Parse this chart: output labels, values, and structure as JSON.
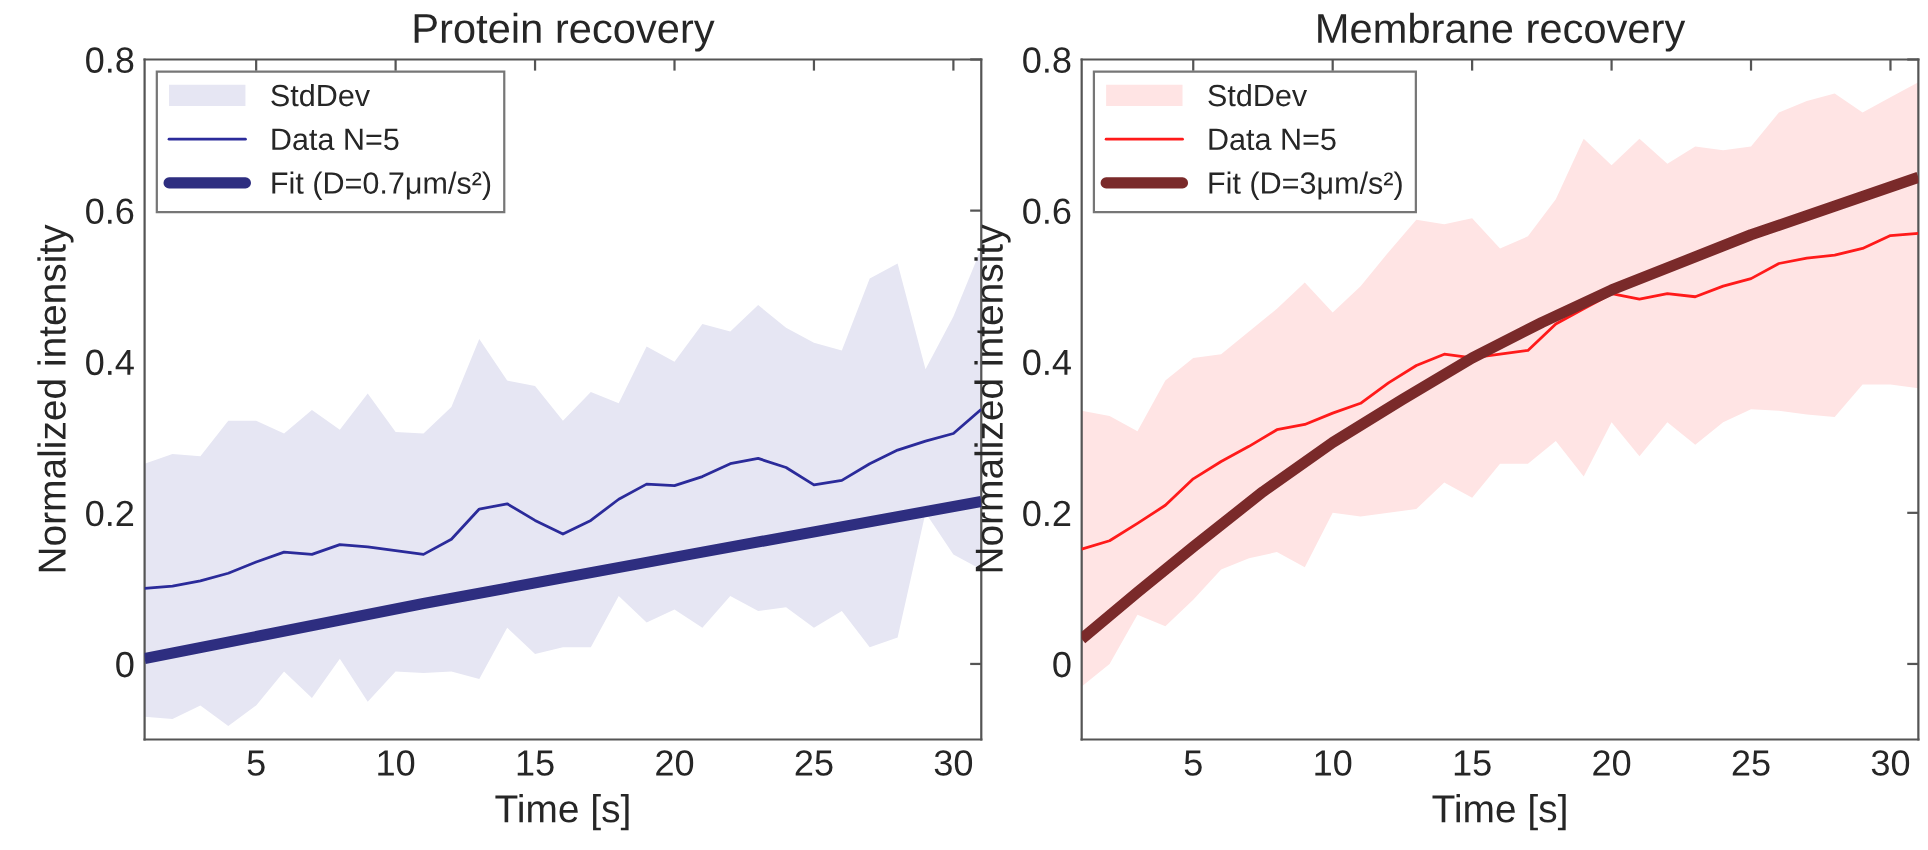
{
  "chart_data": [
    {
      "type": "line",
      "title": "Protein recovery",
      "xlabel": "Time [s]",
      "ylabel": "Normalized intensity",
      "xlim": [
        1,
        31
      ],
      "ylim": [
        -0.1,
        0.8
      ],
      "xticks": [
        5,
        10,
        15,
        20,
        25,
        30
      ],
      "yticks": [
        0,
        0.2,
        0.4,
        0.6,
        0.8
      ],
      "grid": false,
      "legend": "top left",
      "annotations": [
        "StdDev"
      ],
      "x": [
        1,
        2,
        3,
        4,
        5,
        6,
        7,
        8,
        9,
        10,
        11,
        12,
        13,
        14,
        15,
        16,
        17,
        18,
        19,
        20,
        21,
        22,
        23,
        24,
        25,
        26,
        27,
        28,
        29,
        30,
        31
      ],
      "series": [
        {
          "name": "Data N=5",
          "type": "line",
          "color": "#2b2b9a",
          "values": [
            0.1,
            0.103,
            0.11,
            0.12,
            0.135,
            0.148,
            0.145,
            0.158,
            0.155,
            0.15,
            0.145,
            0.165,
            0.205,
            0.212,
            0.19,
            0.172,
            0.19,
            0.218,
            0.238,
            0.236,
            0.248,
            0.265,
            0.272,
            0.26,
            0.237,
            0.243,
            0.265,
            0.283,
            0.295,
            0.305,
            0.337
          ],
          "lower": [
            -0.07,
            -0.073,
            -0.055,
            -0.082,
            -0.055,
            -0.01,
            -0.045,
            0.007,
            -0.05,
            -0.01,
            -0.012,
            -0.01,
            -0.02,
            0.048,
            0.013,
            0.022,
            0.022,
            0.09,
            0.055,
            0.072,
            0.048,
            0.09,
            0.07,
            0.075,
            0.048,
            0.07,
            0.022,
            0.035,
            0.2,
            0.145,
            0.125
          ],
          "upper": [
            0.265,
            0.278,
            0.275,
            0.322,
            0.322,
            0.305,
            0.336,
            0.31,
            0.358,
            0.307,
            0.305,
            0.34,
            0.43,
            0.375,
            0.368,
            0.322,
            0.36,
            0.345,
            0.42,
            0.4,
            0.45,
            0.44,
            0.475,
            0.445,
            0.425,
            0.415,
            0.51,
            0.53,
            0.39,
            0.46,
            0.55
          ]
        },
        {
          "name": "Fit (D=0.7μm/s²)",
          "type": "line",
          "color": "#2e2e80",
          "x": [
            1,
            11,
            21,
            31
          ],
          "values": [
            0.007,
            0.08,
            0.148,
            0.215
          ]
        }
      ]
    },
    {
      "type": "line",
      "title": "Membrane recovery",
      "xlabel": "Time [s]",
      "ylabel": "Normalized intensity",
      "xlim": [
        1,
        31
      ],
      "ylim": [
        -0.1,
        0.8
      ],
      "xticks": [
        5,
        10,
        15,
        20,
        25,
        30
      ],
      "yticks": [
        0,
        0.2,
        0.4,
        0.6,
        0.8
      ],
      "grid": false,
      "legend": "top left",
      "annotations": [
        "StdDev"
      ],
      "x": [
        1,
        2,
        3,
        4,
        5,
        6,
        7,
        8,
        9,
        10,
        11,
        12,
        13,
        14,
        15,
        16,
        17,
        18,
        19,
        20,
        21,
        22,
        23,
        24,
        25,
        26,
        27,
        28,
        29,
        30,
        31
      ],
      "series": [
        {
          "name": "Data N=5",
          "type": "line",
          "color": "#ff1a1a",
          "values": [
            0.152,
            0.163,
            0.186,
            0.21,
            0.245,
            0.268,
            0.288,
            0.31,
            0.317,
            0.332,
            0.345,
            0.372,
            0.395,
            0.41,
            0.405,
            0.41,
            0.415,
            0.45,
            0.47,
            0.49,
            0.483,
            0.49,
            0.486,
            0.5,
            0.51,
            0.53,
            0.537,
            0.541,
            0.55,
            0.567,
            0.57
          ],
          "lower": [
            -0.03,
            0.0,
            0.065,
            0.05,
            0.085,
            0.125,
            0.14,
            0.148,
            0.128,
            0.2,
            0.195,
            0.2,
            0.205,
            0.24,
            0.22,
            0.265,
            0.265,
            0.295,
            0.248,
            0.32,
            0.275,
            0.32,
            0.29,
            0.32,
            0.337,
            0.335,
            0.33,
            0.327,
            0.37,
            0.37,
            0.365
          ],
          "upper": [
            0.335,
            0.328,
            0.308,
            0.375,
            0.405,
            0.41,
            0.44,
            0.47,
            0.505,
            0.465,
            0.5,
            0.545,
            0.588,
            0.582,
            0.59,
            0.55,
            0.566,
            0.615,
            0.695,
            0.66,
            0.695,
            0.662,
            0.685,
            0.68,
            0.685,
            0.73,
            0.745,
            0.755,
            0.73,
            0.75,
            0.77
          ]
        },
        {
          "name": "Fit (D=3μm/s²)",
          "type": "line",
          "color": "#7a2a2a",
          "x": [
            1,
            3,
            5,
            7.5,
            10,
            12.5,
            15,
            17.5,
            20,
            25,
            31
          ],
          "values": [
            0.033,
            0.095,
            0.155,
            0.228,
            0.293,
            0.35,
            0.405,
            0.452,
            0.495,
            0.568,
            0.644
          ]
        }
      ]
    }
  ]
}
